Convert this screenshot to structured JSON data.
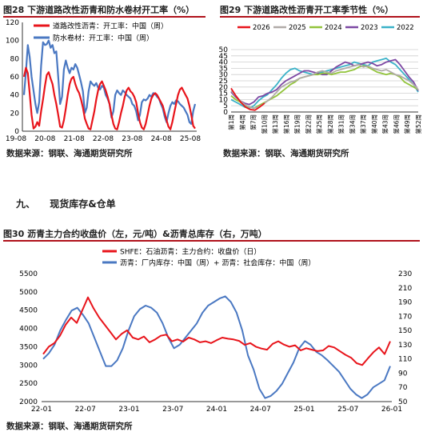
{
  "fig28": {
    "title": "图28  下游道路改性沥青和防水卷材开工率（%）",
    "source": "数据来源：钢联、海通期货研究所",
    "chart_data": {
      "type": "line",
      "x_ticks": [
        "19-08",
        "20-08",
        "21-08",
        "22-08",
        "23-08",
        "24-08",
        "25-08"
      ],
      "ylim": [
        0,
        120
      ],
      "y_ticks": [
        0,
        20,
        40,
        60,
        80,
        100,
        120
      ],
      "grid": false,
      "legend_position": "top-left",
      "series": [
        {
          "name": "道路改性沥青：开工率：中国（周）",
          "color": "#e8141b",
          "values": [
            60,
            70,
            64,
            42,
            18,
            3,
            5,
            10,
            6,
            22,
            35,
            50,
            62,
            65,
            58,
            52,
            40,
            30,
            18,
            5,
            4,
            12,
            25,
            40,
            52,
            58,
            60,
            52,
            46,
            42,
            35,
            26,
            14,
            8,
            3,
            2,
            12,
            22,
            35,
            45,
            52,
            55,
            50,
            45,
            38,
            30,
            18,
            8,
            3,
            2,
            10,
            20,
            28,
            38,
            45,
            48,
            44,
            42,
            38,
            32,
            20,
            10,
            4,
            2,
            8,
            18,
            28,
            36,
            40,
            42,
            40,
            36,
            32,
            28,
            20,
            12,
            5,
            2,
            10,
            20,
            30,
            40,
            46,
            48,
            44,
            40,
            36,
            28,
            18,
            6,
            3
          ]
        },
        {
          "name": "防水卷材：开工率：中国（周）",
          "color": "#4a78c2",
          "values": [
            40,
            65,
            95,
            82,
            60,
            45,
            30,
            20,
            32,
            72,
            98,
            95,
            96,
            100,
            92,
            95,
            86,
            88,
            60,
            30,
            38,
            68,
            78,
            70,
            64,
            70,
            68,
            74,
            70,
            62,
            54,
            44,
            20,
            26,
            44,
            55,
            52,
            50,
            53,
            48,
            46,
            50,
            48,
            40,
            36,
            30,
            15,
            22,
            40,
            45,
            42,
            40,
            45,
            43,
            40,
            38,
            36,
            30,
            28,
            22,
            12,
            18,
            32,
            35,
            34,
            36,
            40,
            38,
            42,
            41,
            38,
            36,
            30,
            25,
            16,
            10,
            20,
            28,
            32,
            30,
            34,
            33,
            30,
            28,
            26,
            22,
            18,
            10,
            8,
            22,
            30
          ]
        }
      ]
    }
  },
  "fig29": {
    "title": "图29  下游道路改性沥青开工率季节性（%）",
    "chart_data": {
      "type": "line",
      "x_ticks": [
        "第1周",
        "第4周",
        "第7周",
        "第10周",
        "第13周",
        "第16周",
        "第19周",
        "第22周",
        "第25周",
        "第28周",
        "第31周",
        "第34周",
        "第37周",
        "第40周",
        "第43周",
        "第46周",
        "第49周",
        "第52周"
      ],
      "ylim": [
        0,
        50
      ],
      "y_ticks": [
        0,
        5,
        10,
        15,
        20,
        25,
        30,
        35,
        40,
        45,
        50
      ],
      "grid": true,
      "legend_position": "top-center",
      "series": [
        {
          "name": "2026",
          "color": "#e8141b",
          "values": [
            19,
            13,
            8,
            4,
            2,
            1.5,
            4,
            7
          ]
        },
        {
          "name": "2025",
          "color": "#b0aba8",
          "values": [
            17,
            13,
            9,
            6,
            4,
            3,
            4,
            6,
            9,
            12,
            16,
            20,
            22,
            24,
            25,
            27,
            28,
            29,
            30,
            32,
            33,
            32,
            31,
            33,
            34,
            35,
            36,
            37,
            38,
            36,
            37,
            35,
            34,
            33,
            34,
            32,
            30,
            29,
            27,
            25,
            22,
            18
          ]
        },
        {
          "name": "2024",
          "color": "#92c43b",
          "values": [
            13,
            10,
            8,
            5,
            4,
            3,
            5,
            7,
            9,
            11,
            13,
            16,
            19,
            22,
            24,
            27,
            28,
            29,
            30,
            30,
            31,
            31,
            30,
            31,
            32,
            32,
            33,
            34,
            36,
            37,
            36,
            34,
            32,
            31,
            30,
            31,
            30,
            28,
            24,
            22,
            20,
            18
          ]
        },
        {
          "name": "2023",
          "color": "#7d48a3",
          "values": [
            16,
            12,
            9,
            7,
            6,
            8,
            12,
            13,
            15,
            16,
            18,
            22,
            25,
            27,
            29,
            31,
            33,
            33,
            32,
            31,
            30,
            30,
            33,
            36,
            38,
            40,
            39,
            37,
            38,
            39,
            40,
            39,
            37,
            38,
            40,
            41,
            42,
            38,
            33,
            28,
            24,
            17
          ]
        },
        {
          "name": "2022",
          "color": "#3ab2c8",
          "values": [
            10,
            8,
            6,
            4,
            3,
            5,
            9,
            12,
            14,
            18,
            22,
            27,
            31,
            34,
            35,
            33,
            32,
            31,
            30,
            31,
            32,
            33,
            34,
            35,
            36,
            37,
            38,
            40,
            39,
            38,
            37,
            40,
            41,
            42,
            43,
            40,
            38,
            34,
            30,
            26,
            22,
            16
          ]
        }
      ]
    }
  },
  "source2": "数据来源：钢联、海通期货研究所",
  "section": {
    "number": "九、",
    "title": "现货库存&仓单"
  },
  "fig30": {
    "title": "图30  沥青主力合约收盘价（左，元/吨）&沥青总库存（右，万吨）",
    "source": "数据来源：钢联、海通期货研究所",
    "chart_data": {
      "type": "line",
      "x_ticks": [
        "22-01",
        "22-07",
        "23-01",
        "23-07",
        "24-01",
        "24-07",
        "25-01",
        "25-07",
        "26-01"
      ],
      "ylim": [
        2000,
        5500
      ],
      "y_ticks": [
        2000,
        2500,
        3000,
        3500,
        4000,
        4500,
        5000,
        5500
      ],
      "y2lim": [
        50,
        230
      ],
      "y2_ticks": [
        50,
        70,
        90,
        110,
        130,
        150,
        170,
        190,
        210,
        230
      ],
      "grid": false,
      "legend_position": "top",
      "series": [
        {
          "name": "SHFE：石油沥青：主力合约：收盘价（日）",
          "color": "#e8141b",
          "axis": "left",
          "values": [
            3300,
            3500,
            3600,
            3800,
            4100,
            4300,
            4150,
            4500,
            4850,
            4550,
            4300,
            4100,
            3900,
            3700,
            3850,
            3950,
            3750,
            3700,
            3780,
            3620,
            3700,
            3800,
            3830,
            3650,
            3700,
            3640,
            3750,
            3700,
            3620,
            3650,
            3600,
            3680,
            3750,
            3720,
            3700,
            3660,
            3550,
            3600,
            3500,
            3450,
            3420,
            3580,
            3650,
            3560,
            3500,
            3540,
            3400,
            3460,
            3420,
            3380,
            3400,
            3520,
            3480,
            3380,
            3280,
            3200,
            3050,
            3000,
            3180,
            3350,
            3480,
            3300,
            3650
          ]
        },
        {
          "name": "沥青：厂内库存：中国（周）+ 沥青：社会库存：中国（周）",
          "color": "#4a78c2",
          "axis": "right",
          "values": [
            110,
            118,
            130,
            150,
            165,
            178,
            182,
            172,
            160,
            140,
            120,
            100,
            100,
            108,
            125,
            150,
            170,
            180,
            185,
            182,
            175,
            160,
            140,
            125,
            130,
            140,
            150,
            160,
            175,
            185,
            190,
            195,
            198,
            190,
            175,
            150,
            115,
            95,
            68,
            55,
            58,
            65,
            75,
            90,
            105,
            125,
            135,
            130,
            120,
            115,
            108,
            100,
            92,
            80,
            68,
            60,
            55,
            60,
            70,
            75,
            80,
            100
          ]
        }
      ]
    }
  }
}
